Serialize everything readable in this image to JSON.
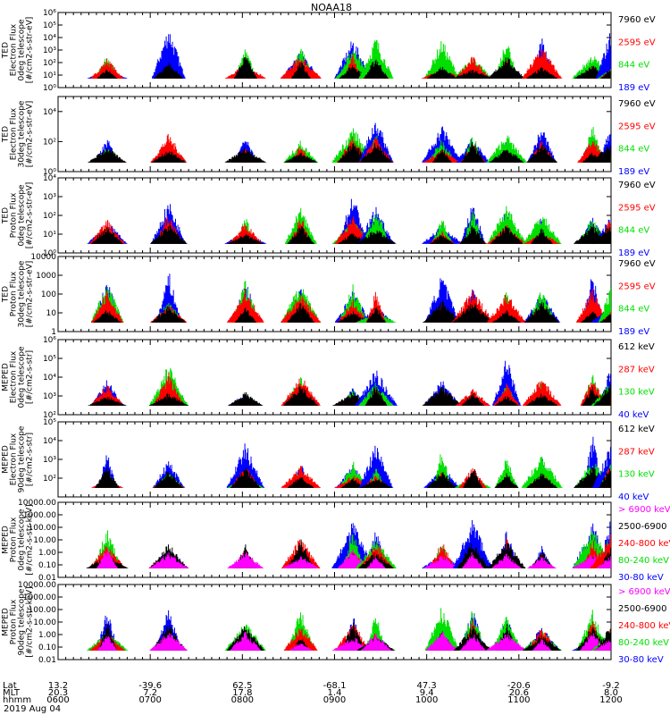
{
  "chart_data": {
    "type": "line",
    "title": "NOAA18",
    "date": "2019 Aug 04",
    "colors": {
      "black": "#000000",
      "red": "#ff0000",
      "green": "#00e000",
      "blue": "#0000ff",
      "magenta": "#ff00ff"
    },
    "panels": [
      {
        "ylabel": [
          "TED",
          "Electron Flux",
          "0deg telescope",
          "[#/cm2-s-str-eV]"
        ],
        "ylim": [
          1,
          1000000
        ],
        "log": true,
        "ticks": [
          1,
          10,
          100,
          1000,
          10000,
          100000,
          1000000
        ],
        "tick_labels": [
          "10⁰",
          "10¹",
          "10²",
          "10³",
          "10⁴",
          "10⁵",
          "10⁶"
        ],
        "legend": [
          {
            "name": "7960 eV",
            "color": "black"
          },
          {
            "name": "2595 eV",
            "color": "red"
          },
          {
            "name": "844 eV",
            "color": "green"
          },
          {
            "name": "189 eV",
            "color": "blue"
          }
        ]
      },
      {
        "ylabel": [
          "TED",
          "Electron Flux",
          "30deg telescope",
          "[#/cm2-s-str-eV]"
        ],
        "ylim": [
          1,
          100000
        ],
        "log": true,
        "ticks": [
          1,
          100,
          10000
        ],
        "tick_labels": [
          "10⁰",
          "10²",
          "10⁴"
        ],
        "legend": [
          {
            "name": "7960 eV",
            "color": "black"
          },
          {
            "name": "2595 eV",
            "color": "red"
          },
          {
            "name": "844 eV",
            "color": "green"
          },
          {
            "name": "189 eV",
            "color": "blue"
          }
        ]
      },
      {
        "ylabel": [
          "TED",
          "Proton Flux",
          "0deg telescope",
          "[#/cm2-s-str-eV]"
        ],
        "ylim": [
          1,
          10000
        ],
        "log": true,
        "ticks": [
          1,
          10,
          100,
          1000,
          10000
        ],
        "tick_labels": [
          "10⁰",
          "10¹",
          "10²",
          "10³",
          "10⁴"
        ],
        "legend": [
          {
            "name": "7960 eV",
            "color": "black"
          },
          {
            "name": "2595 eV",
            "color": "red"
          },
          {
            "name": "844 eV",
            "color": "green"
          },
          {
            "name": "189 eV",
            "color": "blue"
          }
        ]
      },
      {
        "ylabel": [
          "TED",
          "Proton Flux",
          "30deg telescope",
          "[#/cm2-s-str-eV]"
        ],
        "ylim": [
          1,
          10000
        ],
        "log": true,
        "ticks": [
          1,
          10,
          100,
          1000,
          10000
        ],
        "tick_labels": [
          "1",
          "10",
          "100",
          "1000",
          "10000"
        ],
        "legend": [
          {
            "name": "7960 eV",
            "color": "black"
          },
          {
            "name": "2595 eV",
            "color": "red"
          },
          {
            "name": "844 eV",
            "color": "green"
          },
          {
            "name": "189 eV",
            "color": "blue"
          }
        ]
      },
      {
        "ylabel": [
          "MEPED",
          "Electron Flux",
          "0deg telescope",
          "[#/cm2-s-str]"
        ],
        "ylim": [
          100,
          1000000
        ],
        "log": true,
        "ticks": [
          100,
          1000,
          10000,
          100000,
          1000000
        ],
        "tick_labels": [
          "10²",
          "10³",
          "10⁴",
          "10⁵",
          "10⁶"
        ],
        "legend": [
          {
            "name": "612 keV",
            "color": "black"
          },
          {
            "name": "287 keV",
            "color": "red"
          },
          {
            "name": "130 keV",
            "color": "green"
          },
          {
            "name": "40 keV",
            "color": "blue"
          }
        ]
      },
      {
        "ylabel": [
          "MEPED",
          "Electron Flux",
          "90deg telescope",
          "[#/cm2-s-str]"
        ],
        "ylim": [
          10,
          100000
        ],
        "log": true,
        "ticks": [
          100,
          1000,
          10000,
          100000
        ],
        "tick_labels": [
          "10²",
          "10³",
          "10⁴",
          "10⁵"
        ],
        "legend": [
          {
            "name": "612 keV",
            "color": "black"
          },
          {
            "name": "287 keV",
            "color": "red"
          },
          {
            "name": "130 keV",
            "color": "green"
          },
          {
            "name": "40 keV",
            "color": "blue"
          }
        ]
      },
      {
        "ylabel": [
          "MEPED",
          "Proton Flux",
          "0deg telescope",
          "[#/cm2-s-str-keV]"
        ],
        "ylim": [
          0.01,
          10000
        ],
        "log": true,
        "ticks": [
          0.01,
          0.1,
          1,
          10,
          100,
          1000,
          10000
        ],
        "tick_labels": [
          "0.01",
          "0.10",
          "1.00",
          "10.00",
          "100.00",
          "1000.00",
          "10000.00"
        ],
        "legend": [
          {
            "name": "> 6900 keV",
            "color": "magenta"
          },
          {
            "name": "2500-6900",
            "color": "black"
          },
          {
            "name": "240-800 keV",
            "color": "red"
          },
          {
            "name": "80-240 keV",
            "color": "green"
          },
          {
            "name": "30-80 keV",
            "color": "blue"
          }
        ]
      },
      {
        "ylabel": [
          "MEPED",
          "Proton Flux",
          "90deg telescope",
          "[#/cm2-s-str-keV]"
        ],
        "ylim": [
          0.01,
          10000
        ],
        "log": true,
        "ticks": [
          0.01,
          0.1,
          1,
          10,
          100,
          1000,
          10000
        ],
        "tick_labels": [
          "0.01",
          "0.10",
          "1.00",
          "10.00",
          "100.00",
          "1000.00",
          "10000.00"
        ],
        "legend": [
          {
            "name": "> 6900 keV",
            "color": "magenta"
          },
          {
            "name": "2500-6900",
            "color": "black"
          },
          {
            "name": "240-800 keV",
            "color": "red"
          },
          {
            "name": "80-240 keV",
            "color": "green"
          },
          {
            "name": "30-80 keV",
            "color": "blue"
          }
        ]
      }
    ],
    "x_axis": {
      "row_labels": [
        "Lat",
        "MLT",
        "hhmm"
      ],
      "ticks": [
        {
          "t": 600,
          "lat": "13.2",
          "mlt": "20.3",
          "hhmm": "0600"
        },
        {
          "t": 660,
          "lat": "-39.6",
          "mlt": "7.2",
          "hhmm": "0700"
        },
        {
          "t": 720,
          "lat": "62.5",
          "mlt": "17.8",
          "hhmm": "0800"
        },
        {
          "t": 780,
          "lat": "-68.1",
          "mlt": "1.4",
          "hhmm": "0900"
        },
        {
          "t": 840,
          "lat": "47.3",
          "mlt": "9.4",
          "hhmm": "1000"
        },
        {
          "t": 900,
          "lat": "-20.6",
          "mlt": "20.6",
          "hhmm": "1100"
        },
        {
          "t": 960,
          "lat": "-9.2",
          "mlt": "8.0",
          "hhmm": "1200"
        }
      ],
      "xlim": [
        600,
        960
      ]
    },
    "burst_centers_min": [
      632,
      672,
      722,
      758,
      792,
      807,
      850,
      870,
      892,
      915,
      948,
      960
    ],
    "grid": false
  }
}
